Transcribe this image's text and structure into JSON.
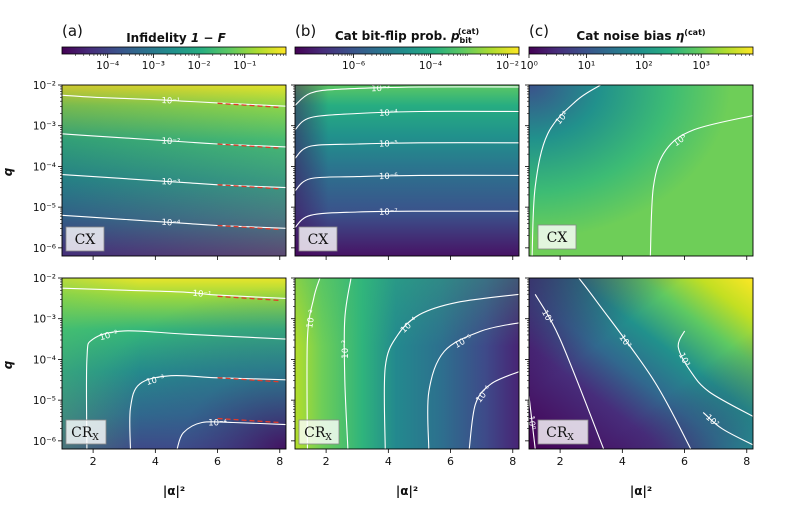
{
  "chart_data": [
    {
      "type": "heatmap",
      "panel": "(a)",
      "title": "Infidelity 1 − F",
      "title_text": "Infidelity ",
      "title_math": "1 − F",
      "colorbar": {
        "scale": "log",
        "range": [
          1e-05,
          0.8
        ],
        "tick_exponents": [
          -4,
          -3,
          -2,
          -1
        ]
      },
      "subplots": [
        {
          "gate": "CX",
          "gate_main": "CX",
          "gate_sub": "",
          "xlabel": "|α|²",
          "ylabel": "q",
          "xlim": [
            1,
            8.2
          ],
          "x_ticks": [
            2,
            4,
            6,
            8
          ],
          "ylim_exponents": [
            -6.2,
            -2
          ],
          "y_tick_exponents": [
            -6,
            -5,
            -4,
            -3,
            -2
          ],
          "contours": [
            {
              "label": "10⁻¹",
              "points": [
                [
                  1,
                  -2.25
                ],
                [
                  2,
                  -2.3
                ],
                [
                  3,
                  -2.33
                ],
                [
                  4,
                  -2.36
                ],
                [
                  5,
                  -2.4
                ],
                [
                  6,
                  -2.44
                ],
                [
                  8.2,
                  -2.52
                ]
              ]
            },
            {
              "label": "10⁻²",
              "points": [
                [
                  1,
                  -3.2
                ],
                [
                  2,
                  -3.25
                ],
                [
                  3,
                  -3.3
                ],
                [
                  4,
                  -3.35
                ],
                [
                  5,
                  -3.4
                ],
                [
                  6,
                  -3.45
                ],
                [
                  8.2,
                  -3.52
                ]
              ]
            },
            {
              "label": "10⁻³",
              "points": [
                [
                  1,
                  -4.2
                ],
                [
                  2,
                  -4.25
                ],
                [
                  3,
                  -4.3
                ],
                [
                  4,
                  -4.35
                ],
                [
                  5,
                  -4.4
                ],
                [
                  6,
                  -4.45
                ],
                [
                  8.2,
                  -4.52
                ]
              ]
            },
            {
              "label": "10⁻⁴",
              "points": [
                [
                  1,
                  -5.2
                ],
                [
                  2,
                  -5.25
                ],
                [
                  3,
                  -5.3
                ],
                [
                  4,
                  -5.35
                ],
                [
                  5,
                  -5.4
                ],
                [
                  6,
                  -5.45
                ],
                [
                  8.2,
                  -5.52
                ]
              ]
            }
          ],
          "red_dashed_fits": [
            [
              [
                6,
                -2.45
              ],
              [
                8,
                -2.55
              ]
            ],
            [
              [
                6,
                -3.45
              ],
              [
                8,
                -3.55
              ]
            ],
            [
              [
                6,
                -4.45
              ],
              [
                8,
                -4.55
              ]
            ],
            [
              [
                6,
                -5.45
              ],
              [
                8,
                -5.55
              ]
            ]
          ]
        },
        {
          "gate": "CRx",
          "gate_main": "CR",
          "gate_sub": "X",
          "xlabel": "|α|²",
          "ylabel": "q",
          "xlim": [
            1,
            8.2
          ],
          "x_ticks": [
            2,
            4,
            6,
            8
          ],
          "ylim_exponents": [
            -6.2,
            -2
          ],
          "y_tick_exponents": [
            -6,
            -5,
            -4,
            -3,
            -2
          ],
          "contours": [
            {
              "label": "10⁻¹",
              "points": [
                [
                  1,
                  -2.25
                ],
                [
                  3,
                  -2.3
                ],
                [
                  5,
                  -2.35
                ],
                [
                  6,
                  -2.42
                ],
                [
                  8.2,
                  -2.5
                ]
              ]
            },
            {
              "label": "10⁻²",
              "points": [
                [
                  1.8,
                  -6.2
                ],
                [
                  1.8,
                  -4
                ],
                [
                  2,
                  -3.5
                ],
                [
                  3,
                  -3.3
                ],
                [
                  5,
                  -3.38
                ],
                [
                  8.2,
                  -3.5
                ]
              ]
            },
            {
              "label": "10⁻³",
              "points": [
                [
                  3.2,
                  -6.2
                ],
                [
                  3.2,
                  -5.2
                ],
                [
                  3.5,
                  -4.6
                ],
                [
                  4.5,
                  -4.4
                ],
                [
                  6,
                  -4.45
                ],
                [
                  8.2,
                  -4.5
                ]
              ]
            },
            {
              "label": "10⁻⁴",
              "points": [
                [
                  4.7,
                  -6.2
                ],
                [
                  4.9,
                  -5.8
                ],
                [
                  5.5,
                  -5.55
                ],
                [
                  6.5,
                  -5.55
                ],
                [
                  8.2,
                  -5.6
                ]
              ]
            }
          ],
          "red_dashed_fits": [
            [
              [
                6,
                -2.45
              ],
              [
                8,
                -2.55
              ]
            ],
            [
              [
                6,
                -4.45
              ],
              [
                8,
                -4.55
              ]
            ],
            [
              [
                6,
                -5.45
              ],
              [
                8,
                -5.55
              ]
            ]
          ]
        }
      ]
    },
    {
      "type": "heatmap",
      "panel": "(b)",
      "title": "Cat bit-flip prob. p_bit^(cat)",
      "title_text": "Cat bit-flip prob. ",
      "title_math": "p",
      "title_sub": "bit",
      "title_sup": "(cat)",
      "colorbar": {
        "scale": "log",
        "range": [
          3e-08,
          0.02
        ],
        "tick_exponents": [
          -6,
          -4,
          -2
        ]
      },
      "subplots": [
        {
          "gate": "CX",
          "gate_main": "CX",
          "gate_sub": "",
          "xlabel": "|α|²",
          "ylabel": "q",
          "xlim": [
            1,
            8.2
          ],
          "x_ticks": [
            2,
            4,
            6,
            8
          ],
          "ylim_exponents": [
            -6.2,
            -2
          ],
          "y_tick_exponents": [
            -6,
            -5,
            -4,
            -3,
            -2
          ],
          "contours": [
            {
              "label": "10⁻³",
              "points": [
                [
                  1,
                  -2.5
                ],
                [
                  1.5,
                  -2.2
                ],
                [
                  2.5,
                  -2.1
                ],
                [
                  5,
                  -2.05
                ],
                [
                  8.2,
                  -2.05
                ]
              ]
            },
            {
              "label": "10⁻⁴",
              "points": [
                [
                  1,
                  -3.1
                ],
                [
                  1.5,
                  -2.8
                ],
                [
                  3,
                  -2.7
                ],
                [
                  5,
                  -2.65
                ],
                [
                  8.2,
                  -2.65
                ]
              ]
            },
            {
              "label": "10⁻⁵",
              "points": [
                [
                  1,
                  -3.8
                ],
                [
                  1.5,
                  -3.5
                ],
                [
                  3,
                  -3.45
                ],
                [
                  5,
                  -3.42
                ],
                [
                  8.2,
                  -3.42
                ]
              ]
            },
            {
              "label": "10⁻⁶",
              "points": [
                [
                  1,
                  -4.6
                ],
                [
                  1.5,
                  -4.3
                ],
                [
                  3,
                  -4.25
                ],
                [
                  5,
                  -4.22
                ],
                [
                  8.2,
                  -4.22
                ]
              ]
            },
            {
              "label": "10⁻⁷",
              "points": [
                [
                  1,
                  -5.5
                ],
                [
                  1.5,
                  -5.2
                ],
                [
                  3,
                  -5.12
                ],
                [
                  5,
                  -5.1
                ],
                [
                  8.2,
                  -5.1
                ]
              ]
            }
          ]
        },
        {
          "gate": "CRx",
          "gate_main": "CR",
          "gate_sub": "X",
          "xlabel": "|α|²",
          "ylabel": "q",
          "xlim": [
            1,
            8.2
          ],
          "x_ticks": [
            2,
            4,
            6,
            8
          ],
          "ylim_exponents": [
            -6.2,
            -2
          ],
          "y_tick_exponents": [
            -6,
            -5,
            -4,
            -3,
            -2
          ],
          "contours": [
            {
              "label": "10⁻²",
              "points": [
                [
                  1.4,
                  -6.2
                ],
                [
                  1.4,
                  -3.5
                ],
                [
                  1.6,
                  -2.5
                ],
                [
                  1.8,
                  -2.0
                ]
              ]
            },
            {
              "label": "10⁻³",
              "points": [
                [
                  2.7,
                  -6.2
                ],
                [
                  2.6,
                  -4.5
                ],
                [
                  2.6,
                  -3
                ],
                [
                  2.8,
                  -2.0
                ]
              ]
            },
            {
              "label": "10⁻⁴",
              "points": [
                [
                  3.9,
                  -6.2
                ],
                [
                  3.9,
                  -4.2
                ],
                [
                  4.3,
                  -3.4
                ],
                [
                  5,
                  -2.9
                ],
                [
                  6.2,
                  -2.6
                ],
                [
                  8.2,
                  -2.4
                ]
              ]
            },
            {
              "label": "10⁻⁵",
              "points": [
                [
                  5.3,
                  -6.2
                ],
                [
                  5.3,
                  -4.8
                ],
                [
                  5.8,
                  -3.8
                ],
                [
                  7,
                  -3.3
                ],
                [
                  8.2,
                  -3.1
                ]
              ]
            },
            {
              "label": "10⁻⁶",
              "points": [
                [
                  6.6,
                  -6.2
                ],
                [
                  6.8,
                  -5.1
                ],
                [
                  7.3,
                  -4.6
                ],
                [
                  8.2,
                  -4.3
                ]
              ]
            }
          ]
        }
      ]
    },
    {
      "type": "heatmap",
      "panel": "(c)",
      "title": "Cat noise bias η^(cat)",
      "title_text": "Cat noise bias ",
      "title_math": "η",
      "title_sup": "(cat)",
      "colorbar": {
        "scale": "log",
        "range": [
          1,
          8000
        ],
        "tick_labels": [
          "10⁰",
          "10¹",
          "10²",
          "10³"
        ],
        "tick_exponents": [
          0,
          1,
          2,
          3
        ]
      },
      "subplots": [
        {
          "gate": "CX",
          "gate_main": "CX",
          "gate_sub": "",
          "xlabel": "|α|²",
          "ylabel": "q",
          "xlim": [
            1,
            8.2
          ],
          "x_ticks": [
            2,
            4,
            6,
            8
          ],
          "ylim_exponents": [
            -6.2,
            -2
          ],
          "y_tick_exponents": [
            -6,
            -5,
            -4,
            -3,
            -2
          ],
          "contours": [
            {
              "label": "10²",
              "points": [
                [
                  1.1,
                  -6.2
                ],
                [
                  1.2,
                  -4.5
                ],
                [
                  1.6,
                  -3.2
                ],
                [
                  2.5,
                  -2.4
                ],
                [
                  3.3,
                  -2.0
                ]
              ]
            },
            {
              "label": "10³",
              "points": [
                [
                  4.9,
                  -6.2
                ],
                [
                  5.0,
                  -4.5
                ],
                [
                  5.4,
                  -3.6
                ],
                [
                  6.3,
                  -3.1
                ],
                [
                  8.2,
                  -2.75
                ]
              ]
            }
          ]
        },
        {
          "gate": "CRx",
          "gate_main": "CR",
          "gate_sub": "X",
          "xlabel": "|α|²",
          "ylabel": "q",
          "xlim": [
            1,
            8.2
          ],
          "x_ticks": [
            2,
            4,
            6,
            8
          ],
          "ylim_exponents": [
            -6.2,
            -2
          ],
          "y_tick_exponents": [
            -6,
            -5,
            -4,
            -3,
            -2
          ],
          "contours": [
            {
              "label": "10⁰",
              "points": [
                [
                  1.2,
                  -6.2
                ],
                [
                  1.0,
                  -4.9
                ]
              ]
            },
            {
              "label": "10¹",
              "points": [
                [
                  3.4,
                  -6.2
                ],
                [
                  2.0,
                  -3.5
                ],
                [
                  1.2,
                  -2.4
                ]
              ]
            },
            {
              "label": "10²",
              "points": [
                [
                  6.2,
                  -6.2
                ],
                [
                  5.0,
                  -4.5
                ],
                [
                  3.2,
                  -2.6
                ],
                [
                  2.6,
                  -2.0
                ]
              ]
            },
            {
              "label": "10²",
              "points": [
                [
                  8.2,
                  -6.1
                ],
                [
                  7.2,
                  -5.7
                ],
                [
                  6.6,
                  -5.3
                ]
              ]
            },
            {
              "label": "10³",
              "points": [
                [
                  8.2,
                  -5.4
                ],
                [
                  6.8,
                  -4.8
                ],
                [
                  6.2,
                  -4.3
                ],
                [
                  5.8,
                  -3.7
                ],
                [
                  6.0,
                  -3.3
                ]
              ]
            }
          ]
        }
      ]
    }
  ]
}
